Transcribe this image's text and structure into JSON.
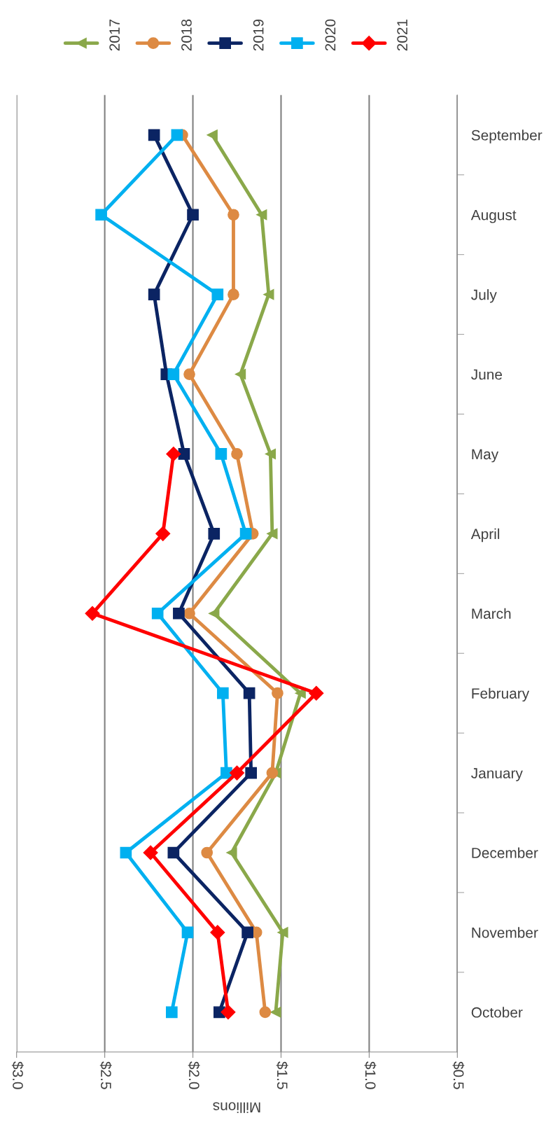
{
  "chart_data": {
    "type": "line",
    "orientation": "horizontal",
    "xlabel": "Millions",
    "categories": [
      "September",
      "August",
      "July",
      "June",
      "May",
      "April",
      "March",
      "February",
      "January",
      "December",
      "November",
      "October"
    ],
    "series": [
      {
        "name": "2017",
        "color": "#8aa84a",
        "marker": "triangle",
        "values": [
          1.89,
          1.61,
          1.57,
          1.73,
          1.56,
          1.55,
          1.88,
          1.39,
          1.53,
          1.78,
          1.49,
          1.53
        ]
      },
      {
        "name": "2018",
        "color": "#dd8a43",
        "marker": "circle",
        "values": [
          2.06,
          1.77,
          1.77,
          2.02,
          1.75,
          1.66,
          2.02,
          1.52,
          1.55,
          1.92,
          1.64,
          1.59
        ]
      },
      {
        "name": "2019",
        "color": "#0b2463",
        "marker": "square",
        "values": [
          2.22,
          2.0,
          2.22,
          2.15,
          2.05,
          1.88,
          2.08,
          1.68,
          1.67,
          2.11,
          1.69,
          1.85
        ]
      },
      {
        "name": "2020",
        "color": "#00b0f0",
        "marker": "square",
        "values": [
          2.09,
          2.52,
          1.86,
          2.11,
          1.84,
          1.7,
          2.2,
          1.83,
          1.81,
          2.38,
          2.03,
          2.12
        ]
      },
      {
        "name": "2021",
        "color": "#ff0000",
        "marker": "diamond",
        "values": [
          null,
          null,
          null,
          null,
          2.11,
          2.17,
          2.57,
          1.3,
          1.75,
          2.24,
          1.86,
          1.8
        ]
      }
    ],
    "xlim": [
      3.0,
      0.5
    ],
    "xticks": [
      {
        "value": 3.0,
        "label": "$3.0"
      },
      {
        "value": 2.5,
        "label": "$2.5"
      },
      {
        "value": 2.0,
        "label": "$2.0"
      },
      {
        "value": 1.5,
        "label": "$1.5"
      },
      {
        "value": 1.0,
        "label": "$1.0"
      },
      {
        "value": 0.5,
        "label": "$0.5"
      }
    ],
    "grid": "x",
    "legend": "top",
    "line_style": "solid"
  }
}
